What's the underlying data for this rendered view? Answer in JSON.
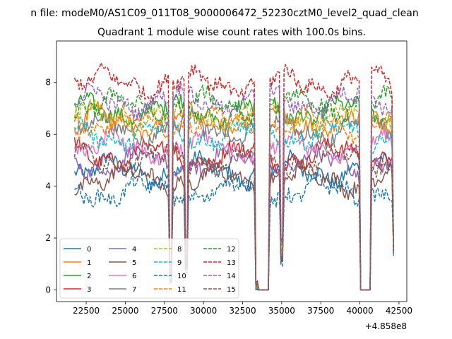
{
  "chart_data": {
    "type": "line",
    "suptitle": "n file: modeM0/AS1C09_011T08_9000006472_52230cztM0_level2_quad_clean",
    "title": "Quadrant 1 module wise count rates with 100.0s bins.",
    "xlabel": "",
    "ylabel": "",
    "x_offset_label": "+4.858e8",
    "xlim": [
      20600,
      43000
    ],
    "ylim": [
      -0.45,
      9.6
    ],
    "xticks": [
      22500,
      25000,
      27500,
      30000,
      32500,
      35000,
      37500,
      40000,
      42500
    ],
    "xtick_labels": [
      "22500",
      "25000",
      "27500",
      "30000",
      "32500",
      "35000",
      "37500",
      "40000",
      "42500"
    ],
    "yticks": [
      0,
      2,
      4,
      6,
      8
    ],
    "ytick_labels": [
      "0",
      "2",
      "4",
      "6",
      "8"
    ],
    "grid": false,
    "legend_position": "lower-left",
    "legend_columns": 4,
    "x_start": 21750,
    "x_end": 42200,
    "x_step": 100,
    "profile_segments": [
      {
        "from": 21750,
        "to": 27750,
        "kind": "data"
      },
      {
        "from": 27800,
        "to": 27950,
        "kind": "dip",
        "depth": 0.9
      },
      {
        "from": 28000,
        "to": 28750,
        "kind": "data"
      },
      {
        "from": 28800,
        "to": 29000,
        "kind": "dip",
        "depth": 0.8
      },
      {
        "from": 29050,
        "to": 33250,
        "kind": "data"
      },
      {
        "from": 33300,
        "to": 33500,
        "kind": "dip",
        "depth": 0.97
      },
      {
        "from": 33550,
        "to": 34150,
        "kind": "zero"
      },
      {
        "from": 34200,
        "to": 34900,
        "kind": "data"
      },
      {
        "from": 34950,
        "to": 35100,
        "kind": "dip",
        "depth": 0.75
      },
      {
        "from": 35150,
        "to": 39950,
        "kind": "data"
      },
      {
        "from": 40000,
        "to": 40650,
        "kind": "zero"
      },
      {
        "from": 40700,
        "to": 42100,
        "kind": "data"
      },
      {
        "from": 42150,
        "to": 42200,
        "kind": "end",
        "value": 1.6
      }
    ],
    "series": [
      {
        "name": "0",
        "level": 4.6,
        "color": "#1f77b4",
        "dash": ""
      },
      {
        "name": "1",
        "level": 6.5,
        "color": "#ff7f0e",
        "dash": ""
      },
      {
        "name": "2",
        "level": 6.9,
        "color": "#2ca02c",
        "dash": ""
      },
      {
        "name": "3",
        "level": 5.2,
        "color": "#d62728",
        "dash": ""
      },
      {
        "name": "4",
        "level": 4.9,
        "color": "#9467bd",
        "dash": ""
      },
      {
        "name": "5",
        "level": 4.3,
        "color": "#8c564b",
        "dash": ""
      },
      {
        "name": "6",
        "level": 5.5,
        "color": "#e377c2",
        "dash": ""
      },
      {
        "name": "7",
        "level": 6.2,
        "color": "#7f7f7f",
        "dash": ""
      },
      {
        "name": "8",
        "level": 6.7,
        "color": "#bcbd22",
        "dash": "5,2"
      },
      {
        "name": "9",
        "level": 6.0,
        "color": "#17becf",
        "dash": "5,2"
      },
      {
        "name": "10",
        "level": 3.8,
        "color": "#1f77b4",
        "dash": "5,2"
      },
      {
        "name": "11",
        "level": 6.4,
        "color": "#ff7f0e",
        "dash": "5,2"
      },
      {
        "name": "12",
        "level": 7.1,
        "color": "#2ca02c",
        "dash": "5,2"
      },
      {
        "name": "13",
        "level": 8.0,
        "color": "#d62728",
        "dash": "5,2"
      },
      {
        "name": "14",
        "level": 7.3,
        "color": "#9467bd",
        "dash": "5,2"
      },
      {
        "name": "15",
        "level": 5.0,
        "color": "#8c564b",
        "dash": "5,2"
      }
    ]
  }
}
